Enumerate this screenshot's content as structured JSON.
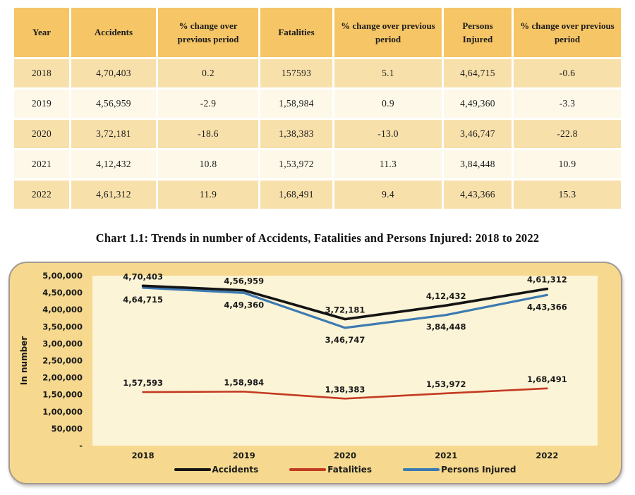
{
  "table": {
    "headers": [
      "Year",
      "Accidents",
      "% change over previous period",
      "Fatalities",
      "% change over previous period",
      "Persons Injured",
      "% change over previous period"
    ],
    "rows": [
      [
        "2018",
        "4,70,403",
        "0.2",
        "157593",
        "5.1",
        "4,64,715",
        "-0.6"
      ],
      [
        "2019",
        "4,56,959",
        "-2.9",
        "1,58,984",
        "0.9",
        "4,49,360",
        "-3.3"
      ],
      [
        "2020",
        "3,72,181",
        "-18.6",
        "1,38,383",
        "-13.0",
        "3,46,747",
        "-22.8"
      ],
      [
        "2021",
        "4,12,432",
        "10.8",
        "1,53,972",
        "11.3",
        "3,84,448",
        "10.9"
      ],
      [
        "2022",
        "4,61,312",
        "11.9",
        "1,68,491",
        "9.4",
        "4,43,366",
        "15.3"
      ]
    ]
  },
  "chart_title": "Chart 1.1: Trends in number of Accidents, Fatalities and Persons Injured: 2018 to 2022",
  "chart_data": {
    "type": "line",
    "title": "Chart 1.1: Trends in number of Accidents, Fatalities and Persons Injured: 2018 to 2022",
    "x": [
      "2018",
      "2019",
      "2020",
      "2021",
      "2022"
    ],
    "series": [
      {
        "name": "Accidents",
        "color": "#141414",
        "stroke_width": 3.6,
        "values": [
          470403,
          456959,
          372181,
          412432,
          461312
        ],
        "point_labels": [
          "4,70,403",
          "4,56,959",
          "3,72,181",
          "4,12,432",
          "4,61,312"
        ],
        "label_side": "above"
      },
      {
        "name": "Fatalities",
        "color": "#c33a22",
        "stroke_width": 2.6,
        "values": [
          157593,
          158984,
          138383,
          153972,
          168491
        ],
        "point_labels": [
          "1,57,593",
          "1,58,984",
          "1,38,383",
          "1,53,972",
          "1,68,491"
        ],
        "label_side": "above"
      },
      {
        "name": "Persons Injured",
        "color": "#3c7ab2",
        "stroke_width": 3.2,
        "values": [
          464715,
          449360,
          346747,
          384448,
          443366
        ],
        "point_labels": [
          "4,64,715",
          "4,49,360",
          "3,46,747",
          "3,84,448",
          "4,43,366"
        ],
        "label_side": "below"
      }
    ],
    "xlabel": "",
    "ylabel": "In number",
    "ylim": [
      0,
      500000
    ],
    "ytick_step": 50000,
    "ytick_labels": [
      "-",
      "50,000",
      "1,00,000",
      "1,50,000",
      "2,00,000",
      "2,50,000",
      "3,00,000",
      "3,50,000",
      "4,00,000",
      "4,50,000",
      "5,00,000"
    ],
    "grid": false,
    "legend_position": "bottom",
    "legend": [
      "Accidents",
      "Fatalities",
      "Persons Injured"
    ]
  },
  "colors": {
    "table_header_bg": "#f5c566",
    "table_row_odd_bg": "#f8e0ab",
    "table_row_even_bg": "#fdf8e7",
    "chart_area_bg": "#f6d98e",
    "plot_area_bg": "#fcf4d6",
    "chart_border": "#a29a94"
  }
}
